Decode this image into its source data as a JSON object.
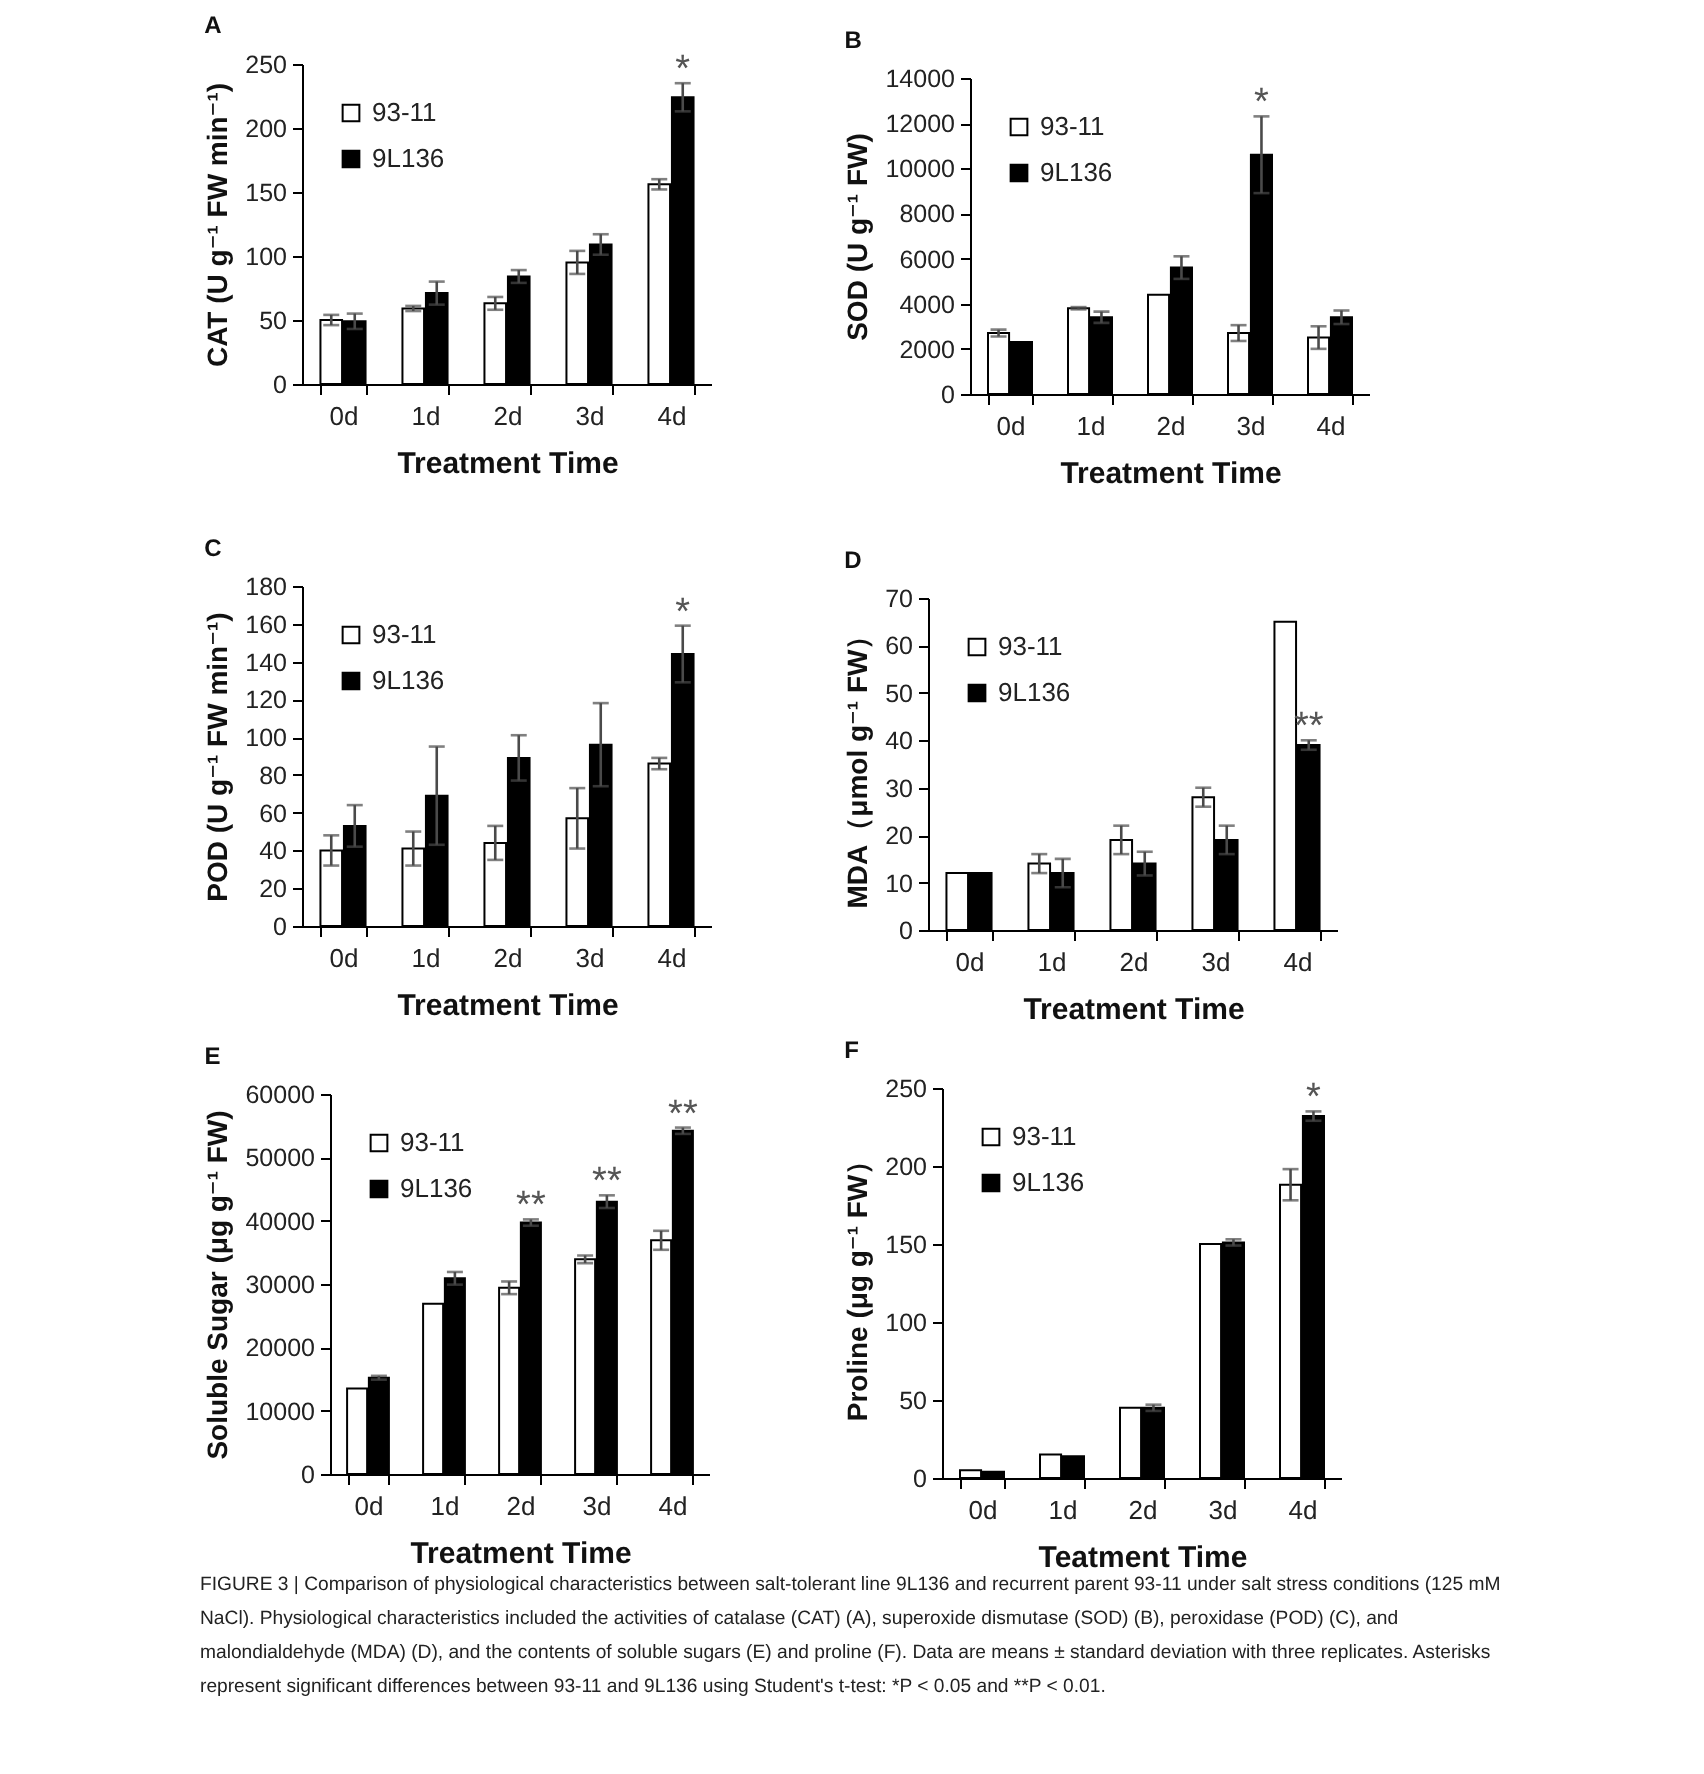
{
  "chart_data": [
    {
      "type": "bar",
      "title": "A",
      "xlabel": "Treatment Time",
      "ylabel": "CAT (U g⁻¹ FW min⁻¹)",
      "categories": [
        "0d",
        "1d",
        "2d",
        "3d",
        "4d"
      ],
      "series": [
        {
          "name": "93-11",
          "color": "#ffffff",
          "values": [
            50,
            59,
            63,
            95,
            156
          ],
          "errors": [
            4,
            2,
            5,
            9,
            4
          ]
        },
        {
          "name": "9L136",
          "color": "#000000",
          "values": [
            49,
            71,
            84,
            109,
            224
          ],
          "errors": [
            6,
            9,
            5,
            8,
            11
          ]
        }
      ],
      "ylim": [
        0,
        250
      ],
      "yticks": [
        0,
        50,
        100,
        150,
        200,
        250
      ],
      "legend": "top left",
      "annotations": [
        {
          "text": "*",
          "x": "4d",
          "y": 224
        }
      ]
    },
    {
      "type": "bar",
      "title": "B",
      "xlabel": "Treatment Time",
      "ylabel": "SOD (U g⁻¹ FW)",
      "categories": [
        "0d",
        "1d",
        "2d",
        "3d",
        "4d"
      ],
      "series": [
        {
          "name": "93-11",
          "color": "#ffffff",
          "values": [
            2700,
            3800,
            4400,
            2700,
            2500
          ],
          "errors": [
            150,
            50,
            null,
            350,
            500
          ]
        },
        {
          "name": "9L136",
          "color": "#000000",
          "values": [
            2300,
            3400,
            5600,
            10600,
            3400
          ],
          "errors": [
            null,
            250,
            500,
            1700,
            300
          ]
        }
      ],
      "ylim": [
        0,
        14000
      ],
      "yticks": [
        0,
        2000,
        4000,
        6000,
        8000,
        10000,
        12000,
        14000
      ],
      "legend": "top left",
      "annotations": [
        {
          "text": "*",
          "x": "3d",
          "y": 10600
        }
      ]
    },
    {
      "type": "bar",
      "title": "C",
      "xlabel": "Treatment Time",
      "ylabel": "POD (U g⁻¹ FW min⁻¹)",
      "categories": [
        "0d",
        "1d",
        "2d",
        "3d",
        "4d"
      ],
      "series": [
        {
          "name": "93-11",
          "color": "#ffffff",
          "values": [
            40,
            41,
            44,
            57,
            86
          ],
          "errors": [
            8,
            9,
            9,
            16,
            3
          ]
        },
        {
          "name": "9L136",
          "color": "#000000",
          "values": [
            53,
            69,
            89,
            96,
            144
          ],
          "errors": [
            11,
            26,
            12,
            22,
            15
          ]
        }
      ],
      "ylim": [
        0,
        180
      ],
      "yticks": [
        0,
        20,
        40,
        60,
        80,
        100,
        120,
        140,
        160,
        180
      ],
      "legend": "top left",
      "annotations": [
        {
          "text": "*",
          "x": "4d",
          "y": 144
        }
      ]
    },
    {
      "type": "bar",
      "title": "D",
      "xlabel": "Treatment Time",
      "ylabel": "MDA（μmol g⁻¹ FW）",
      "categories": [
        "0d",
        "1d",
        "2d",
        "3d",
        "4d"
      ],
      "series": [
        {
          "name": "93-11",
          "color": "#ffffff",
          "values": [
            12,
            14,
            19,
            28,
            65
          ],
          "errors": [
            null,
            2,
            3,
            2,
            null
          ]
        },
        {
          "name": "9L136",
          "color": "#000000",
          "values": [
            12,
            12,
            14,
            19,
            39
          ],
          "errors": [
            null,
            3,
            2.5,
            3,
            1
          ]
        }
      ],
      "ylim": [
        0,
        70
      ],
      "yticks": [
        0,
        10,
        20,
        30,
        40,
        50,
        60,
        70
      ],
      "legend": "top left",
      "annotations": [
        {
          "text": "**",
          "x": "4d",
          "y": 39
        }
      ]
    },
    {
      "type": "bar",
      "title": "E",
      "xlabel": "Treatment Time",
      "ylabel": "Soluble Sugar (μg g⁻¹ FW)",
      "categories": [
        "0d",
        "1d",
        "2d",
        "3d",
        "4d"
      ],
      "series": [
        {
          "name": "93-11",
          "color": "#ffffff",
          "values": [
            13500,
            26900,
            29400,
            33900,
            36900
          ],
          "errors": [
            null,
            null,
            1000,
            600,
            1500
          ]
        },
        {
          "name": "9L136",
          "color": "#000000",
          "values": [
            15200,
            30900,
            39700,
            43000,
            54200
          ],
          "errors": [
            300,
            1000,
            500,
            1000,
            500
          ]
        }
      ],
      "ylim": [
        0,
        60000
      ],
      "yticks": [
        0,
        10000,
        20000,
        30000,
        40000,
        50000,
        60000
      ],
      "legend": "top left",
      "annotations": [
        {
          "text": "**",
          "x": "2d",
          "y": 39700
        },
        {
          "text": "**",
          "x": "3d",
          "y": 43000
        },
        {
          "text": "**",
          "x": "4d",
          "y": 54200
        }
      ]
    },
    {
      "type": "bar",
      "title": "F",
      "xlabel": "Teatment Time",
      "ylabel": "Proline (μg g⁻¹ FW）",
      "categories": [
        "0d",
        "1d",
        "2d",
        "3d",
        "4d"
      ],
      "series": [
        {
          "name": "93-11",
          "color": "#ffffff",
          "values": [
            5,
            15,
            45,
            150,
            188
          ],
          "errors": [
            null,
            null,
            null,
            null,
            10
          ]
        },
        {
          "name": "9L136",
          "color": "#000000",
          "values": [
            4,
            14,
            45,
            151,
            232
          ],
          "errors": [
            null,
            null,
            2,
            2,
            3
          ]
        }
      ],
      "ylim": [
        0,
        250
      ],
      "yticks": [
        0,
        50,
        100,
        150,
        200,
        250
      ],
      "legend": "top left",
      "annotations": [
        {
          "text": "*",
          "x": "4d",
          "y": 232
        }
      ]
    },
    {
      "type": "other",
      "annotations": [
        "FIGURE 3 | Comparison of physiological characteristics between salt-tolerant line 9L136 and recurrent parent 93-11 under salt stress conditions (125 mM NaCl). Physiological characteristics included the activities of catalase (CAT) (A), superoxide dismutase (SOD) (B), peroxidase (POD) (C), and malondialdehyde (MDA) (D), and the contents of soluble sugars (E) and proline (F). Data are means ± standard deviation with three replicates. Asterisks represent significant differences between 93-11 and 9L136 using Student's t-test: *P < 0.05 and **P < 0.01."
      ]
    }
  ]
}
